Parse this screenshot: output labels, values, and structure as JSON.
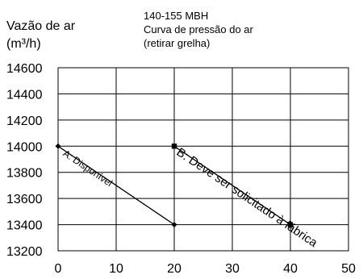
{
  "header": {
    "model": "140-155 MBH",
    "title": "Curva de pressão do ar",
    "subtitle": "(retirar grelha)"
  },
  "axis": {
    "ylabel_line1": "Vazão de ar",
    "ylabel_line2": "(m³/h)"
  },
  "chart_data": {
    "type": "line",
    "title": "Curva de pressão do ar",
    "subtitle": "(retirar grelha)",
    "ylabel": "Vazão de ar (m³/h)",
    "xlabel": "",
    "xlim": [
      0,
      50
    ],
    "ylim": [
      13200,
      14600
    ],
    "xticks": [
      0,
      10,
      20,
      30,
      40,
      50
    ],
    "yticks": [
      13200,
      13400,
      13600,
      13800,
      14000,
      14200,
      14400,
      14600
    ],
    "grid": true,
    "series": [
      {
        "name": "A: Disponível",
        "marker": "diamond",
        "x": [
          0,
          20
        ],
        "y": [
          14000,
          13400
        ]
      },
      {
        "name": "B: Deve ser solicitado à fábrica",
        "marker": "square",
        "x": [
          20,
          40
        ],
        "y": [
          14000,
          13400
        ]
      }
    ],
    "colors": {
      "line": "#000000",
      "grid": "#000000"
    }
  }
}
